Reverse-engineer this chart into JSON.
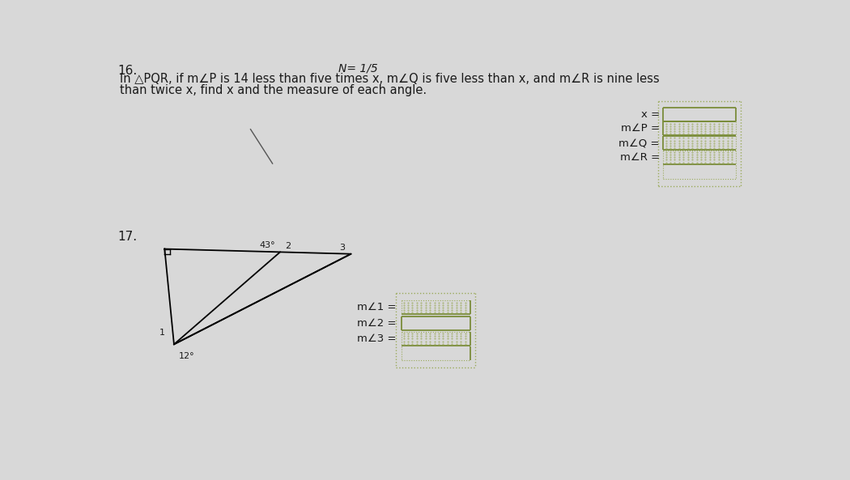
{
  "bg_color": "#d8d8d8",
  "problem_16_text_line1": "In △PQR, if m∠P is 14 less than five times x, m∠Q is five less than x, and m∠R is nine less",
  "problem_16_text_line2": "than twice x, find x and the measure of each angle.",
  "problem_number_16": "16.",
  "problem_number_17": "17.",
  "header_text": "N= 1/5",
  "box_color_solid": "#7a8c3a",
  "box_color_dashed": "#9aaa5a",
  "text_color": "#1a1a1a",
  "font_size_body": 10.5,
  "font_size_labels": 9.5,
  "diag_line": [
    [
      230,
      115
    ],
    [
      265,
      170
    ]
  ]
}
